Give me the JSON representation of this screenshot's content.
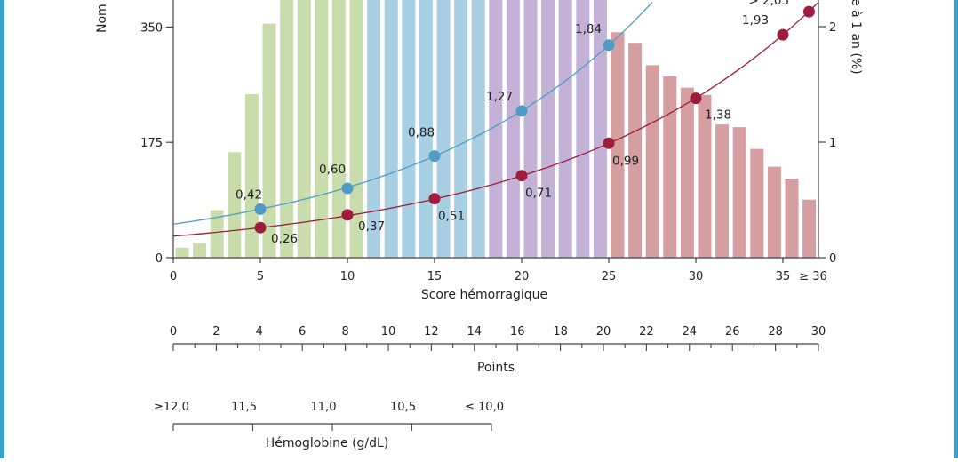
{
  "chart_data": {
    "type": "bar",
    "xlabel": "Score hémorragique",
    "ylabel_left": "Nom",
    "ylabel_right": "e à 1 an (%)",
    "x_ticks": [
      "0",
      "5",
      "10",
      "15",
      "20",
      "25",
      "30",
      "35",
      "≥ 36"
    ],
    "x_tick_values": [
      0,
      5,
      10,
      15,
      20,
      25,
      30,
      35,
      36.5
    ],
    "y_left_ticks": [
      "0",
      "175",
      "350"
    ],
    "y_left_tick_values": [
      0,
      175,
      350
    ],
    "y_right_ticks": [
      "0",
      "1",
      "2"
    ],
    "y_right_tick_values": [
      0,
      1,
      2
    ],
    "ylim_left": [
      0,
      400
    ],
    "ylim_right": [
      0,
      2.3
    ],
    "bars": {
      "x": [
        0,
        1,
        2,
        3,
        4,
        5,
        6,
        7,
        8,
        9,
        10,
        11,
        12,
        13,
        14,
        15,
        16,
        17,
        18,
        19,
        20,
        21,
        22,
        23,
        24,
        25,
        26,
        27,
        28,
        29,
        30,
        31,
        32,
        33,
        34,
        35,
        36
      ],
      "values": [
        15,
        22,
        72,
        160,
        248,
        355,
        400,
        400,
        400,
        400,
        400,
        400,
        400,
        400,
        400,
        400,
        400,
        400,
        400,
        400,
        400,
        400,
        400,
        400,
        400,
        342,
        326,
        292,
        275,
        258,
        247,
        202,
        198,
        165,
        138,
        120,
        88
      ],
      "group_colors": [
        "#c8dcac",
        "#a8d0e2",
        "#c3b2d6",
        "#d59ea0"
      ],
      "groups": [
        {
          "from": 0,
          "to": 10,
          "color": "#c8dcac"
        },
        {
          "from": 11,
          "to": 17,
          "color": "#a8d0e2"
        },
        {
          "from": 18,
          "to": 24,
          "color": "#c3b2d6"
        },
        {
          "from": 25,
          "to": 36,
          "color": "#d59ea0"
        }
      ]
    },
    "series": [
      {
        "color": "#4f9dc6",
        "points": [
          {
            "x": 5,
            "y": 0.42,
            "label": "0,42"
          },
          {
            "x": 10,
            "y": 0.6,
            "label": "0,60"
          },
          {
            "x": 15,
            "y": 0.88,
            "label": "0,88"
          },
          {
            "x": 20,
            "y": 1.27,
            "label": "1,27"
          },
          {
            "x": 25,
            "y": 1.84,
            "label": "1,84"
          }
        ]
      },
      {
        "color": "#a01c3e",
        "points": [
          {
            "x": 5,
            "y": 0.26,
            "label": "0,26"
          },
          {
            "x": 10,
            "y": 0.37,
            "label": "0,37"
          },
          {
            "x": 15,
            "y": 0.51,
            "label": "0,51"
          },
          {
            "x": 20,
            "y": 0.71,
            "label": "0,71"
          },
          {
            "x": 25,
            "y": 0.99,
            "label": "0,99"
          },
          {
            "x": 30,
            "y": 1.38,
            "label": "1,38"
          },
          {
            "x": 35,
            "y": 1.93,
            "label": "1,93"
          },
          {
            "x": 36.5,
            "y": 2.13,
            "label": "> 2,05"
          }
        ]
      }
    ],
    "points_scale": {
      "title": "Points",
      "tick_labels": [
        "0",
        "2",
        "4",
        "6",
        "8",
        "10",
        "12",
        "14",
        "16",
        "18",
        "20",
        "22",
        "24",
        "26",
        "28",
        "30"
      ],
      "tick_values": [
        0,
        2,
        4,
        6,
        8,
        10,
        12,
        14,
        16,
        18,
        20,
        22,
        24,
        26,
        28,
        30
      ],
      "minor_step": 1
    },
    "hemoglobin_scale": {
      "title": "Hémoglobine (g/dL)",
      "tick_labels": [
        "≥12,0",
        "11,5",
        "11,0",
        "10,5",
        "≤ 10,0"
      ],
      "tick_values": [
        12.0,
        11.5,
        11.0,
        10.5,
        10.0
      ]
    }
  }
}
